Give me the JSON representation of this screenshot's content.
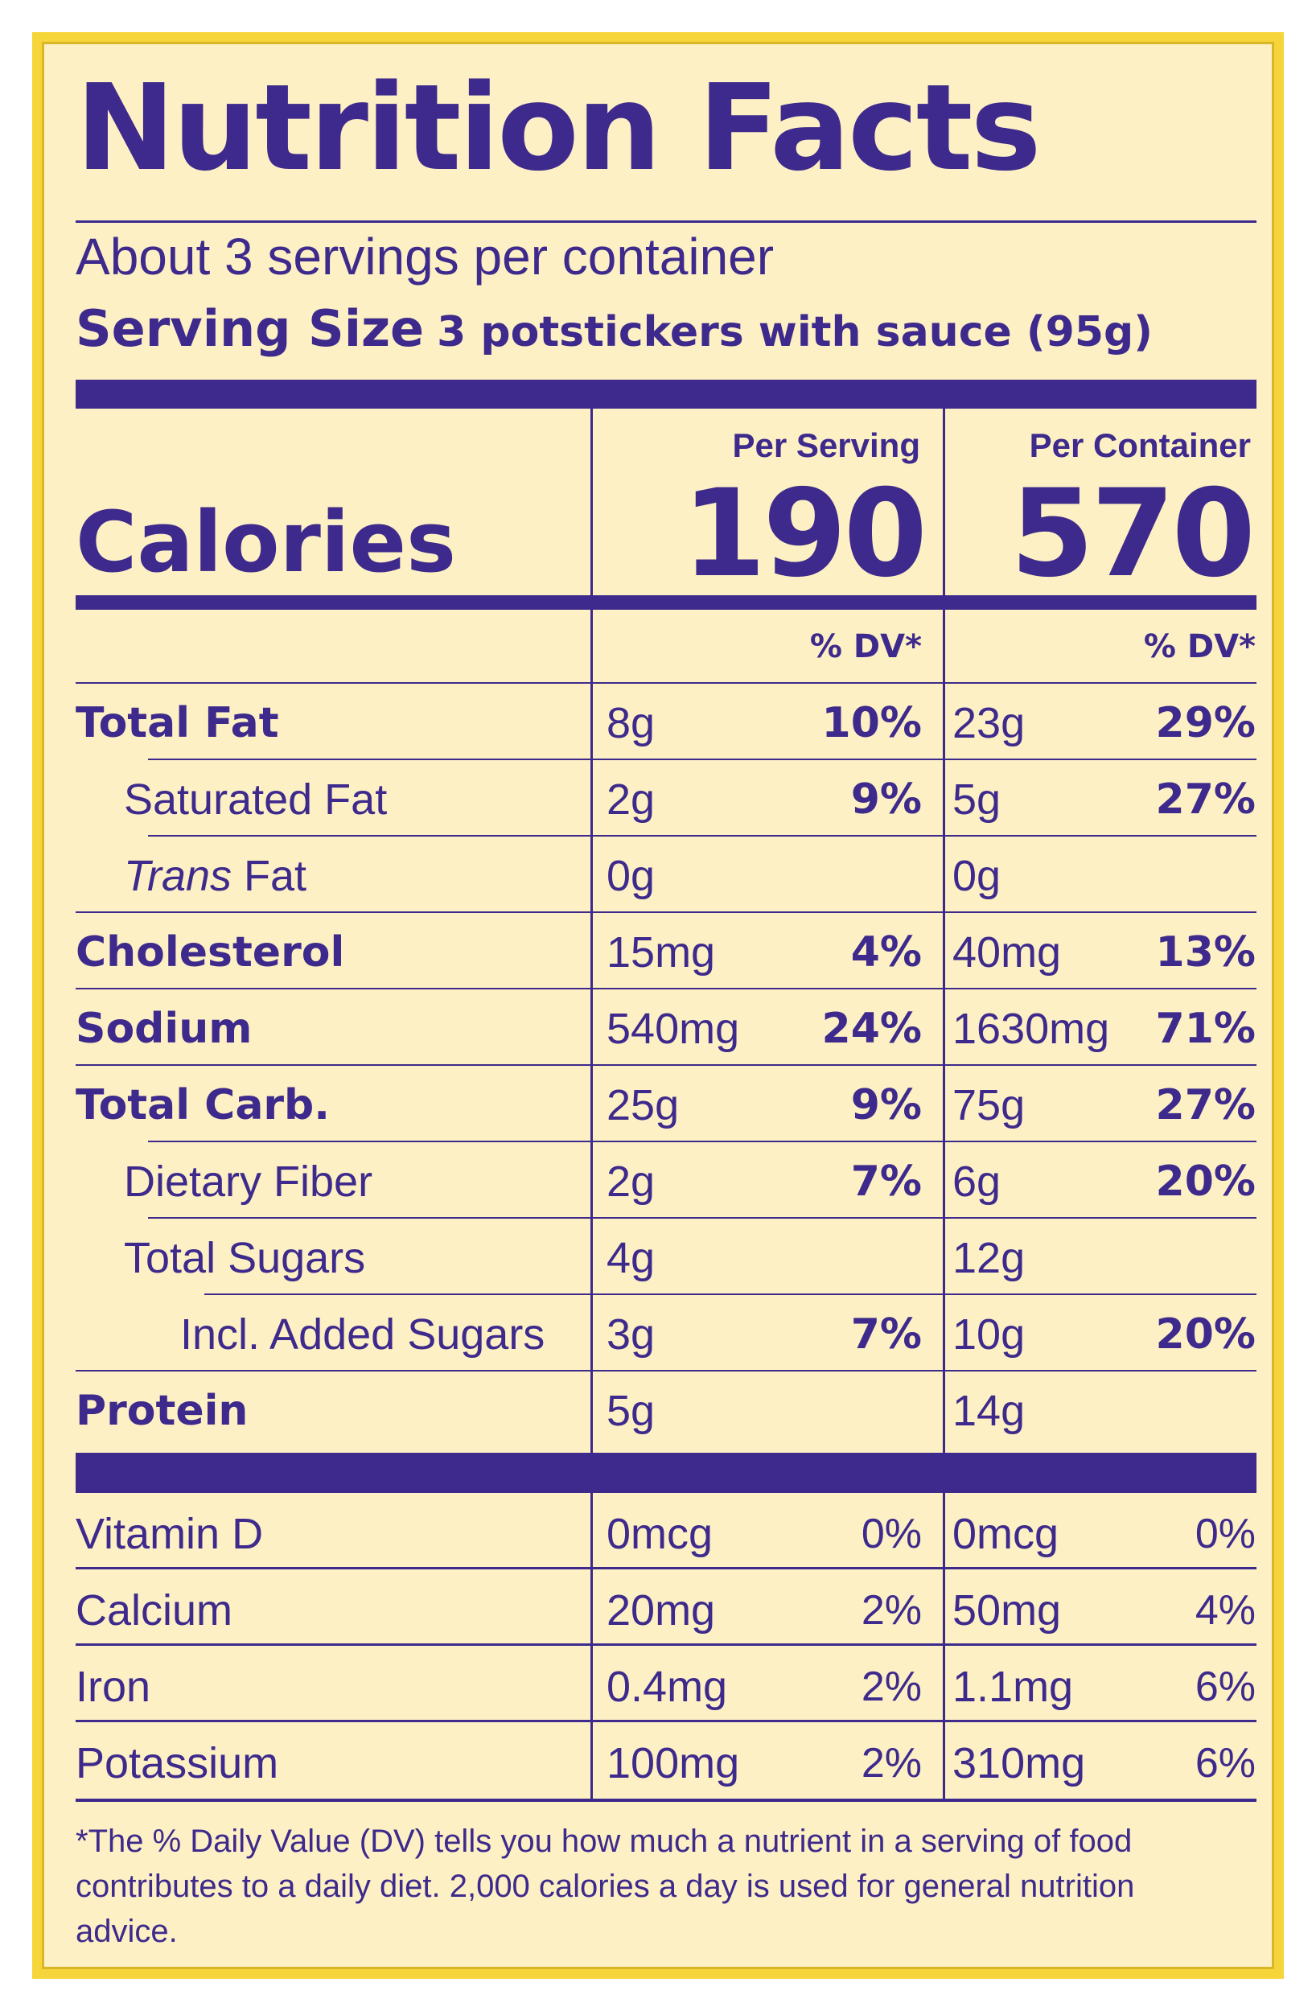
{
  "header": {
    "title": "Nutrition Facts",
    "servings_per_container": "About 3 servings per container",
    "serving_size_label": "Serving Size",
    "serving_size_value": "3 potstickers with sauce (95g)"
  },
  "columns": {
    "per_serving_label": "Per Serving",
    "per_container_label": "Per Container",
    "dv_label": "% DV*"
  },
  "calories": {
    "label": "Calories",
    "per_serving": "190",
    "per_container": "570"
  },
  "nutrients": [
    {
      "name": "Total Fat",
      "bold": true,
      "indent": 0,
      "serving_amount": "8g",
      "serving_dv": "10%",
      "container_amount": "23g",
      "container_dv": "29%"
    },
    {
      "name": "Saturated Fat",
      "bold": false,
      "indent": 1,
      "serving_amount": "2g",
      "serving_dv": "9%",
      "container_amount": "5g",
      "container_dv": "27%"
    },
    {
      "name_italic": "Trans",
      "name": " Fat",
      "bold": false,
      "indent": 1,
      "serving_amount": "0g",
      "serving_dv": "",
      "container_amount": "0g",
      "container_dv": ""
    },
    {
      "name": "Cholesterol",
      "bold": true,
      "indent": 0,
      "serving_amount": "15mg",
      "serving_dv": "4%",
      "container_amount": "40mg",
      "container_dv": "13%"
    },
    {
      "name": "Sodium",
      "bold": true,
      "indent": 0,
      "serving_amount": "540mg",
      "serving_dv": "24%",
      "container_amount": "1630mg",
      "container_dv": "71%"
    },
    {
      "name": "Total Carb.",
      "bold": true,
      "indent": 0,
      "serving_amount": "25g",
      "serving_dv": "9%",
      "container_amount": "75g",
      "container_dv": "27%"
    },
    {
      "name": "Dietary Fiber",
      "bold": false,
      "indent": 1,
      "serving_amount": "2g",
      "serving_dv": "7%",
      "container_amount": "6g",
      "container_dv": "20%"
    },
    {
      "name": "Total Sugars",
      "bold": false,
      "indent": 1,
      "serving_amount": "4g",
      "serving_dv": "",
      "container_amount": "12g",
      "container_dv": ""
    },
    {
      "name": "Incl. Added Sugars",
      "bold": false,
      "indent": 2,
      "serving_amount": "3g",
      "serving_dv": "7%",
      "container_amount": "10g",
      "container_dv": "20%"
    },
    {
      "name": "Protein",
      "bold": true,
      "indent": 0,
      "serving_amount": "5g",
      "serving_dv": "",
      "container_amount": "14g",
      "container_dv": ""
    }
  ],
  "vitamins": [
    {
      "name": "Vitamin D",
      "serving_amount": "0mcg",
      "serving_dv": "0%",
      "container_amount": "0mcg",
      "container_dv": "0%"
    },
    {
      "name": "Calcium",
      "serving_amount": "20mg",
      "serving_dv": "2%",
      "container_amount": "50mg",
      "container_dv": "4%"
    },
    {
      "name": "Iron",
      "serving_amount": "0.4mg",
      "serving_dv": "2%",
      "container_amount": "1.1mg",
      "container_dv": "6%"
    },
    {
      "name": "Potassium",
      "serving_amount": "100mg",
      "serving_dv": "2%",
      "container_amount": "310mg",
      "container_dv": "6%"
    }
  ],
  "footnote": "*The % Daily Value (DV) tells you how much a nutrient in a serving of food contributes to a daily diet. 2,000 calories a day is used for general nutrition advice.",
  "colors": {
    "ink": "#3d2a8c",
    "panel": "#fdf0c4",
    "border": "#f6d53a"
  }
}
